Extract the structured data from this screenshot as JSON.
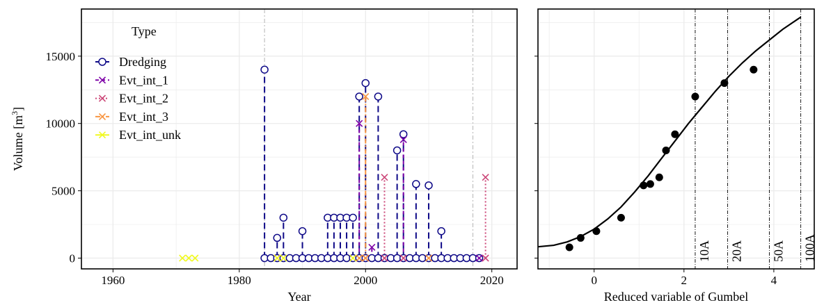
{
  "colors": {
    "Dredging": "#0d0887",
    "Evt_int_1": "#7e03a8",
    "Evt_int_2": "#cc4778",
    "Evt_int_3": "#f89540",
    "Evt_int_unk": "#f0f921",
    "grid": "#ebebeb",
    "refline": "#bbbbbb",
    "curve": "#000000"
  },
  "chart_data": [
    {
      "type": "scatter",
      "panel": "left",
      "xlabel": "Year",
      "ylabel_main": "Volume [m",
      "ylabel_sup": "3",
      "ylabel_end": "]",
      "xlim": [
        1955,
        2024
      ],
      "ylim": [
        -800,
        18500
      ],
      "xticks": [
        1960,
        1980,
        2000,
        2020
      ],
      "yticks": [
        0,
        5000,
        10000,
        15000
      ],
      "grid": true,
      "legend": {
        "title": "Type",
        "position": "top-left",
        "entries": [
          "Dredging",
          "Evt_int_1",
          "Evt_int_2",
          "Evt_int_3",
          "Evt_int_unk"
        ]
      },
      "vlines": [
        1984,
        2017
      ],
      "series": [
        {
          "name": "Dredging",
          "marker": "circle",
          "line": "longdash",
          "points": [
            [
              1984,
              14000
            ],
            [
              1986,
              1500
            ],
            [
              1987,
              3000
            ],
            [
              1990,
              2000
            ],
            [
              1994,
              3000
            ],
            [
              1995,
              3000
            ],
            [
              1996,
              3000
            ],
            [
              1997,
              3000
            ],
            [
              1998,
              3000
            ],
            [
              1999,
              12000
            ],
            [
              2000,
              13000
            ],
            [
              2002,
              12000
            ],
            [
              2005,
              8000
            ],
            [
              2006,
              9200
            ],
            [
              2008,
              5500
            ],
            [
              2010,
              5400
            ],
            [
              2012,
              2000
            ],
            [
              1984,
              0
            ],
            [
              1985,
              0
            ],
            [
              1986,
              0
            ],
            [
              1987,
              0
            ],
            [
              1988,
              0
            ],
            [
              1989,
              0
            ],
            [
              1990,
              0
            ],
            [
              1991,
              0
            ],
            [
              1992,
              0
            ],
            [
              1993,
              0
            ],
            [
              1994,
              0
            ],
            [
              1995,
              0
            ],
            [
              1996,
              0
            ],
            [
              1997,
              0
            ],
            [
              1998,
              0
            ],
            [
              1999,
              0
            ],
            [
              2000,
              0
            ],
            [
              2001,
              0
            ],
            [
              2002,
              0
            ],
            [
              2003,
              0
            ],
            [
              2004,
              0
            ],
            [
              2005,
              0
            ],
            [
              2006,
              0
            ],
            [
              2007,
              0
            ],
            [
              2008,
              0
            ],
            [
              2009,
              0
            ],
            [
              2010,
              0
            ],
            [
              2011,
              0
            ],
            [
              2012,
              0
            ],
            [
              2013,
              0
            ],
            [
              2014,
              0
            ],
            [
              2015,
              0
            ],
            [
              2016,
              0
            ],
            [
              2017,
              0
            ],
            [
              2018,
              0
            ]
          ]
        },
        {
          "name": "Evt_int_1",
          "marker": "x",
          "line": "dashed",
          "points": [
            [
              1999,
              10000
            ],
            [
              2001,
              800
            ],
            [
              2006,
              8800
            ],
            [
              2018,
              0
            ]
          ]
        },
        {
          "name": "Evt_int_2",
          "marker": "x",
          "line": "dotted",
          "points": [
            [
              2003,
              6000
            ],
            [
              2019,
              6000
            ],
            [
              2000,
              0
            ],
            [
              2006,
              0
            ],
            [
              2019,
              0
            ],
            [
              2003,
              0
            ]
          ]
        },
        {
          "name": "Evt_int_3",
          "marker": "x",
          "line": "dotdash",
          "points": [
            [
              2000,
              12000
            ],
            [
              1999,
              0
            ],
            [
              2000,
              0
            ],
            [
              2010,
              0
            ],
            [
              1986,
              0
            ]
          ]
        },
        {
          "name": "Evt_int_unk",
          "marker": "x",
          "line": "solid",
          "points": [
            [
              1971,
              0
            ],
            [
              1972,
              0
            ],
            [
              1973,
              0
            ],
            [
              1986,
              0
            ],
            [
              1987,
              0
            ],
            [
              1998,
              0
            ]
          ]
        }
      ]
    },
    {
      "type": "scatter",
      "panel": "right",
      "xlabel": "Reduced variable of Gumbel",
      "xlim": [
        -1.25,
        4.9
      ],
      "ylim": [
        -800,
        18500
      ],
      "xticks": [
        0,
        2,
        4
      ],
      "grid": true,
      "return_periods": [
        {
          "label": "10A",
          "x": 2.25
        },
        {
          "label": "20A",
          "x": 2.97
        },
        {
          "label": "50A",
          "x": 3.9
        },
        {
          "label": "100A",
          "x": 4.6
        }
      ],
      "points": [
        [
          -0.55,
          800
        ],
        [
          -0.3,
          1500
        ],
        [
          0.05,
          2000
        ],
        [
          0.6,
          3000
        ],
        [
          1.1,
          5400
        ],
        [
          1.25,
          5500
        ],
        [
          1.45,
          6000
        ],
        [
          1.6,
          8000
        ],
        [
          1.8,
          9200
        ],
        [
          2.25,
          12000
        ],
        [
          2.9,
          13000
        ],
        [
          3.55,
          14000
        ]
      ],
      "fit_curve": [
        [
          -1.25,
          840
        ],
        [
          -0.9,
          950
        ],
        [
          -0.6,
          1200
        ],
        [
          -0.3,
          1600
        ],
        [
          0,
          2150
        ],
        [
          0.3,
          2900
        ],
        [
          0.6,
          3800
        ],
        [
          0.9,
          4900
        ],
        [
          1.2,
          6100
        ],
        [
          1.5,
          7400
        ],
        [
          1.8,
          8700
        ],
        [
          2.1,
          10000
        ],
        [
          2.4,
          11200
        ],
        [
          2.7,
          12400
        ],
        [
          3.0,
          13500
        ],
        [
          3.3,
          14500
        ],
        [
          3.6,
          15400
        ],
        [
          3.9,
          16200
        ],
        [
          4.2,
          17000
        ],
        [
          4.6,
          17900
        ]
      ]
    }
  ]
}
